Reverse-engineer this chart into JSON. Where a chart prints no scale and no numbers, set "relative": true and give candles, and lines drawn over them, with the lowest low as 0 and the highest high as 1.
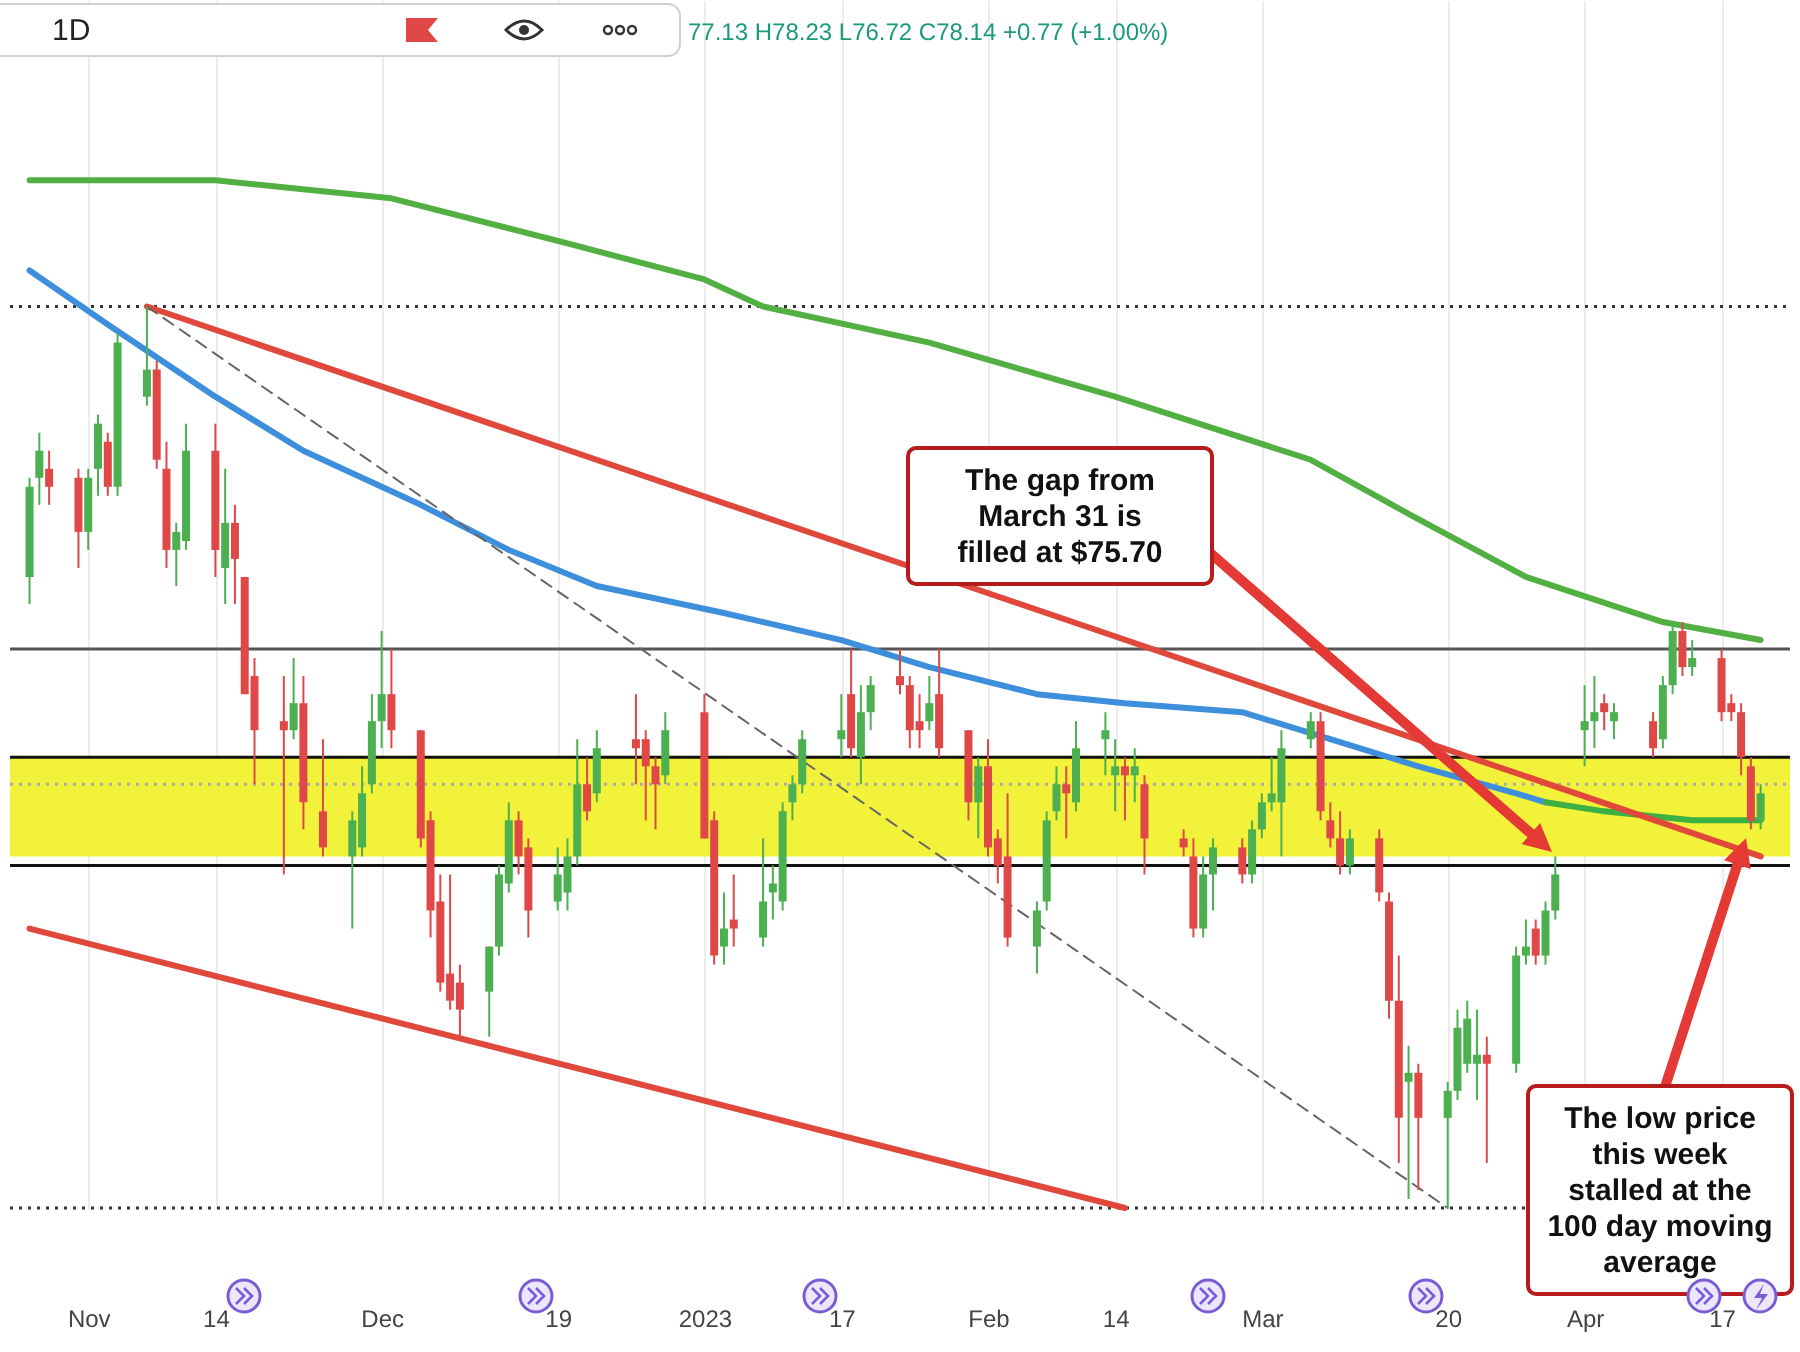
{
  "chart_data": {
    "type": "candlestick",
    "relative": true,
    "grid": "x",
    "xlim": [
      "2022-10-24",
      "2023-04-24"
    ],
    "x": [
      "2022-10-26",
      "2022-10-27",
      "2022-10-28",
      "2022-10-31",
      "2022-11-01",
      "2022-11-02",
      "2022-11-03",
      "2022-11-04",
      "2022-11-07",
      "2022-11-08",
      "2022-11-09",
      "2022-11-10",
      "2022-11-11",
      "2022-11-14",
      "2022-11-15",
      "2022-11-16",
      "2022-11-17",
      "2022-11-18",
      "2022-11-21",
      "2022-11-22",
      "2022-11-23",
      "2022-11-25",
      "2022-11-28",
      "2022-11-29",
      "2022-11-30",
      "2022-12-01",
      "2022-12-02",
      "2022-12-05",
      "2022-12-06",
      "2022-12-07",
      "2022-12-08",
      "2022-12-09",
      "2022-12-12",
      "2022-12-13",
      "2022-12-14",
      "2022-12-15",
      "2022-12-16",
      "2022-12-19",
      "2022-12-20",
      "2022-12-21",
      "2022-12-22",
      "2022-12-23",
      "2022-12-27",
      "2022-12-28",
      "2022-12-29",
      "2022-12-30",
      "2023-01-03",
      "2023-01-04",
      "2023-01-05",
      "2023-01-06",
      "2023-01-09",
      "2023-01-10",
      "2023-01-11",
      "2023-01-12",
      "2023-01-13",
      "2023-01-17",
      "2023-01-18",
      "2023-01-19",
      "2023-01-20",
      "2023-01-23",
      "2023-01-24",
      "2023-01-25",
      "2023-01-26",
      "2023-01-27",
      "2023-01-30",
      "2023-01-31",
      "2023-02-01",
      "2023-02-02",
      "2023-02-03",
      "2023-02-06",
      "2023-02-07",
      "2023-02-08",
      "2023-02-09",
      "2023-02-10",
      "2023-02-13",
      "2023-02-14",
      "2023-02-15",
      "2023-02-16",
      "2023-02-17",
      "2023-02-21",
      "2023-02-22",
      "2023-02-23",
      "2023-02-24",
      "2023-02-27",
      "2023-02-28",
      "2023-03-01",
      "2023-03-02",
      "2023-03-03",
      "2023-03-06",
      "2023-03-07",
      "2023-03-08",
      "2023-03-09",
      "2023-03-10",
      "2023-03-13",
      "2023-03-14",
      "2023-03-15",
      "2023-03-16",
      "2023-03-17",
      "2023-03-20",
      "2023-03-21",
      "2023-03-22",
      "2023-03-23",
      "2023-03-24",
      "2023-03-27",
      "2023-03-28",
      "2023-03-29",
      "2023-03-30",
      "2023-03-31",
      "2023-04-03",
      "2023-04-04",
      "2023-04-05",
      "2023-04-06",
      "2023-04-10",
      "2023-04-11",
      "2023-04-12",
      "2023-04-13",
      "2023-04-14",
      "2023-04-17",
      "2023-04-18",
      "2023-04-19",
      "2023-04-20",
      "2023-04-21"
    ],
    "ohlc": [
      [
        0.7,
        0.81,
        0.67,
        0.8
      ],
      [
        0.81,
        0.86,
        0.78,
        0.84
      ],
      [
        0.82,
        0.84,
        0.78,
        0.8
      ],
      [
        0.81,
        0.82,
        0.71,
        0.75
      ],
      [
        0.75,
        0.82,
        0.73,
        0.81
      ],
      [
        0.82,
        0.88,
        0.79,
        0.87
      ],
      [
        0.85,
        0.86,
        0.79,
        0.8
      ],
      [
        0.8,
        0.97,
        0.79,
        0.96
      ],
      [
        0.9,
        1,
        0.89,
        0.93
      ],
      [
        0.93,
        0.94,
        0.82,
        0.83
      ],
      [
        0.82,
        0.85,
        0.71,
        0.73
      ],
      [
        0.73,
        0.76,
        0.69,
        0.75
      ],
      [
        0.74,
        0.87,
        0.73,
        0.84
      ],
      [
        0.84,
        0.87,
        0.7,
        0.73
      ],
      [
        0.71,
        0.82,
        0.67,
        0.76
      ],
      [
        0.76,
        0.78,
        0.67,
        0.72
      ],
      [
        0.7,
        0.7,
        0.57,
        0.57
      ],
      [
        0.59,
        0.61,
        0.47,
        0.53
      ],
      [
        0.54,
        0.59,
        0.37,
        0.53
      ],
      [
        0.53,
        0.61,
        0.52,
        0.56
      ],
      [
        0.56,
        0.59,
        0.42,
        0.45
      ],
      [
        0.44,
        0.52,
        0.39,
        0.4
      ],
      [
        0.39,
        0.44,
        0.31,
        0.43
      ],
      [
        0.4,
        0.49,
        0.39,
        0.46
      ],
      [
        0.47,
        0.57,
        0.46,
        0.54
      ],
      [
        0.54,
        0.64,
        0.51,
        0.57
      ],
      [
        0.57,
        0.62,
        0.51,
        0.53
      ],
      [
        0.53,
        0.53,
        0.4,
        0.41
      ],
      [
        0.43,
        0.44,
        0.3,
        0.33
      ],
      [
        0.34,
        0.37,
        0.24,
        0.25
      ],
      [
        0.26,
        0.37,
        0.22,
        0.23
      ],
      [
        0.25,
        0.27,
        0.19,
        0.22
      ],
      [
        0.24,
        0.29,
        0.19,
        0.29
      ],
      [
        0.29,
        0.38,
        0.28,
        0.37
      ],
      [
        0.36,
        0.45,
        0.35,
        0.43
      ],
      [
        0.43,
        0.44,
        0.37,
        0.39
      ],
      [
        0.4,
        0.41,
        0.3,
        0.33
      ],
      [
        0.34,
        0.4,
        0.33,
        0.37
      ],
      [
        0.35,
        0.41,
        0.33,
        0.39
      ],
      [
        0.39,
        0.52,
        0.38,
        0.47
      ],
      [
        0.47,
        0.5,
        0.43,
        0.44
      ],
      [
        0.46,
        0.53,
        0.45,
        0.51
      ],
      [
        0.52,
        0.57,
        0.47,
        0.51
      ],
      [
        0.52,
        0.53,
        0.43,
        0.49
      ],
      [
        0.49,
        0.5,
        0.42,
        0.47
      ],
      [
        0.48,
        0.55,
        0.47,
        0.53
      ],
      [
        0.55,
        0.57,
        0.41,
        0.41
      ],
      [
        0.43,
        0.44,
        0.27,
        0.28
      ],
      [
        0.29,
        0.35,
        0.27,
        0.31
      ],
      [
        0.32,
        0.37,
        0.29,
        0.31
      ],
      [
        0.3,
        0.41,
        0.29,
        0.34
      ],
      [
        0.35,
        0.38,
        0.32,
        0.36
      ],
      [
        0.34,
        0.45,
        0.33,
        0.44
      ],
      [
        0.45,
        0.48,
        0.43,
        0.47
      ],
      [
        0.47,
        0.53,
        0.46,
        0.52
      ],
      [
        0.52,
        0.57,
        0.5,
        0.53
      ],
      [
        0.57,
        0.62,
        0.5,
        0.51
      ],
      [
        0.5,
        0.58,
        0.47,
        0.55
      ],
      [
        0.55,
        0.59,
        0.53,
        0.58
      ],
      [
        0.59,
        0.62,
        0.57,
        0.58
      ],
      [
        0.58,
        0.59,
        0.51,
        0.53
      ],
      [
        0.54,
        0.57,
        0.51,
        0.53
      ],
      [
        0.54,
        0.59,
        0.53,
        0.56
      ],
      [
        0.57,
        0.62,
        0.5,
        0.51
      ],
      [
        0.53,
        0.53,
        0.43,
        0.45
      ],
      [
        0.45,
        0.5,
        0.41,
        0.49
      ],
      [
        0.49,
        0.52,
        0.39,
        0.4
      ],
      [
        0.41,
        0.42,
        0.36,
        0.38
      ],
      [
        0.39,
        0.46,
        0.29,
        0.3
      ],
      [
        0.29,
        0.34,
        0.26,
        0.33
      ],
      [
        0.34,
        0.44,
        0.33,
        0.43
      ],
      [
        0.44,
        0.49,
        0.43,
        0.47
      ],
      [
        0.47,
        0.49,
        0.41,
        0.46
      ],
      [
        0.45,
        0.54,
        0.44,
        0.51
      ],
      [
        0.52,
        0.55,
        0.48,
        0.53
      ],
      [
        0.48,
        0.52,
        0.44,
        0.49
      ],
      [
        0.49,
        0.5,
        0.43,
        0.48
      ],
      [
        0.48,
        0.51,
        0.45,
        0.49
      ],
      [
        0.47,
        0.48,
        0.37,
        0.41
      ],
      [
        0.41,
        0.42,
        0.39,
        0.4
      ],
      [
        0.39,
        0.41,
        0.3,
        0.31
      ],
      [
        0.31,
        0.39,
        0.3,
        0.37
      ],
      [
        0.37,
        0.41,
        0.33,
        0.4
      ],
      [
        0.4,
        0.41,
        0.36,
        0.37
      ],
      [
        0.37,
        0.43,
        0.36,
        0.42
      ],
      [
        0.42,
        0.46,
        0.41,
        0.45
      ],
      [
        0.45,
        0.5,
        0.44,
        0.46
      ],
      [
        0.45,
        0.53,
        0.39,
        0.51
      ],
      [
        0.52,
        0.55,
        0.51,
        0.54
      ],
      [
        0.54,
        0.55,
        0.43,
        0.44
      ],
      [
        0.43,
        0.45,
        0.4,
        0.41
      ],
      [
        0.41,
        0.44,
        0.37,
        0.38
      ],
      [
        0.38,
        0.42,
        0.37,
        0.41
      ],
      [
        0.41,
        0.42,
        0.34,
        0.35
      ],
      [
        0.34,
        0.35,
        0.21,
        0.23
      ],
      [
        0.23,
        0.28,
        0.05,
        0.1
      ],
      [
        0.14,
        0.18,
        0.01,
        0.15
      ],
      [
        0.15,
        0.16,
        0.02,
        0.1
      ],
      [
        0.1,
        0.14,
        0,
        0.13
      ],
      [
        0.13,
        0.22,
        0.12,
        0.2
      ],
      [
        0.16,
        0.23,
        0.15,
        0.21
      ],
      [
        0.16,
        0.22,
        0.12,
        0.17
      ],
      [
        0.17,
        0.19,
        0.05,
        0.16
      ],
      [
        0.16,
        0.29,
        0.15,
        0.28
      ],
      [
        0.28,
        0.32,
        0.27,
        0.29
      ],
      [
        0.31,
        0.32,
        0.27,
        0.28
      ],
      [
        0.28,
        0.34,
        0.27,
        0.33
      ],
      [
        0.33,
        0.39,
        0.32,
        0.37
      ],
      [
        0.53,
        0.58,
        0.49,
        0.54
      ],
      [
        0.54,
        0.59,
        0.51,
        0.55
      ],
      [
        0.56,
        0.57,
        0.53,
        0.55
      ],
      [
        0.54,
        0.56,
        0.52,
        0.55
      ],
      [
        0.54,
        0.55,
        0.5,
        0.51
      ],
      [
        0.52,
        0.59,
        0.51,
        0.58
      ],
      [
        0.58,
        0.65,
        0.57,
        0.64
      ],
      [
        0.64,
        0.65,
        0.59,
        0.6
      ],
      [
        0.6,
        0.63,
        0.59,
        0.61
      ],
      [
        0.61,
        0.62,
        0.54,
        0.55
      ],
      [
        0.56,
        0.57,
        0.54,
        0.55
      ],
      [
        0.55,
        0.56,
        0.48,
        0.5
      ],
      [
        0.49,
        0.5,
        0.42,
        0.43
      ],
      [
        0.43,
        0.47,
        0.42,
        0.46
      ]
    ],
    "colors": [
      "#4caf50",
      "#4caf50",
      "#e04848",
      "#e04848",
      "#4caf50",
      "#4caf50",
      "#e04848",
      "#4caf50",
      "#4caf50",
      "#e04848",
      "#e04848",
      "#4caf50",
      "#4caf50",
      "#e04848",
      "#4caf50",
      "#e04848",
      "#e04848",
      "#e04848",
      "#e04848",
      "#4caf50",
      "#e04848",
      "#e04848",
      "#4caf50",
      "#4caf50",
      "#4caf50",
      "#4caf50",
      "#e04848",
      "#e04848",
      "#e04848",
      "#e04848",
      "#e04848",
      "#e04848",
      "#4caf50",
      "#4caf50",
      "#4caf50",
      "#e04848",
      "#e04848",
      "#4caf50",
      "#4caf50",
      "#4caf50",
      "#e04848",
      "#4caf50",
      "#e04848",
      "#e04848",
      "#e04848",
      "#4caf50",
      "#e04848",
      "#e04848",
      "#4caf50",
      "#e04848",
      "#4caf50",
      "#4caf50",
      "#4caf50",
      "#4caf50",
      "#4caf50",
      "#4caf50",
      "#e04848",
      "#4caf50",
      "#4caf50",
      "#e04848",
      "#e04848",
      "#e04848",
      "#4caf50",
      "#e04848",
      "#e04848",
      "#4caf50",
      "#e04848",
      "#e04848",
      "#e04848",
      "#4caf50",
      "#4caf50",
      "#4caf50",
      "#e04848",
      "#4caf50",
      "#4caf50",
      "#4caf50",
      "#e04848",
      "#4caf50",
      "#e04848",
      "#e04848",
      "#e04848",
      "#4caf50",
      "#4caf50",
      "#e04848",
      "#4caf50",
      "#4caf50",
      "#4caf50",
      "#4caf50",
      "#4caf50",
      "#e04848",
      "#e04848",
      "#e04848",
      "#4caf50",
      "#e04848",
      "#e04848",
      "#e04848",
      "#4caf50",
      "#e04848",
      "#4caf50",
      "#4caf50",
      "#4caf50",
      "#4caf50",
      "#e04848",
      "#4caf50",
      "#4caf50",
      "#e04848",
      "#4caf50",
      "#4caf50",
      "#4caf50",
      "#4caf50",
      "#e04848",
      "#4caf50",
      "#e04848",
      "#4caf50",
      "#4caf50",
      "#e04848",
      "#4caf50",
      "#e04848",
      "#e04848",
      "#e04848",
      "#e04848",
      "#4caf50"
    ],
    "xticks": [
      {
        "value": "2022-11-01",
        "label": "Nov"
      },
      {
        "value": "2022-11-14",
        "label": "14"
      },
      {
        "value": "2022-12-01",
        "label": "Dec"
      },
      {
        "value": "2022-12-19",
        "label": "19"
      },
      {
        "value": "2023-01-03",
        "label": "2023"
      },
      {
        "value": "2023-01-17",
        "label": "17"
      },
      {
        "value": "2023-02-01",
        "label": "Feb"
      },
      {
        "value": "2023-02-14",
        "label": "14"
      },
      {
        "value": "2023-03-01",
        "label": "Mar"
      },
      {
        "value": "2023-03-20",
        "label": "20"
      },
      {
        "value": "2023-04-03",
        "label": "Apr"
      },
      {
        "value": "2023-04-17",
        "label": "17"
      }
    ],
    "series": [
      {
        "type": "line",
        "color": "#52b043",
        "x": [
          "2022-10-26",
          "2022-11-14",
          "2022-12-02",
          "2022-12-20",
          "2023-01-03",
          "2023-01-09",
          "2023-01-26",
          "2023-02-14",
          "2023-03-06",
          "2023-03-16",
          "2023-03-28",
          "2023-04-11",
          "2023-04-21"
        ],
        "values": [
          1.14,
          1.14,
          1.12,
          1.07,
          1.03,
          1.0,
          0.96,
          0.9,
          0.83,
          0.77,
          0.7,
          0.65,
          0.63
        ]
      },
      {
        "type": "line",
        "color": "#3d8fdc",
        "x": [
          "2022-10-26",
          "2022-11-03",
          "2022-11-14",
          "2022-11-23",
          "2022-12-05",
          "2022-12-14",
          "2022-12-23",
          "2023-01-05",
          "2023-01-17",
          "2023-01-26",
          "2023-02-06",
          "2023-02-15",
          "2023-02-27",
          "2023-03-08",
          "2023-03-17",
          "2023-03-27",
          "2023-03-30"
        ],
        "values": [
          1.04,
          0.98,
          0.9,
          0.84,
          0.78,
          0.73,
          0.69,
          0.66,
          0.63,
          0.6,
          0.57,
          0.56,
          0.55,
          0.52,
          0.49,
          0.46,
          0.45
        ]
      },
      {
        "type": "line",
        "color": "#3cb043",
        "x": [
          "2023-03-30",
          "2023-04-05",
          "2023-04-14",
          "2023-04-21"
        ],
        "values": [
          0.45,
          0.44,
          0.43,
          0.43
        ]
      },
      {
        "type": "line",
        "color": "#e0483c",
        "x": [
          "2022-11-07",
          "2023-04-21"
        ],
        "values": [
          1,
          0.39
        ]
      },
      {
        "type": "line",
        "color": "#e0483c",
        "x": [
          "2022-10-26",
          "2023-02-15"
        ],
        "values": [
          0.31,
          0
        ]
      },
      {
        "type": "line",
        "color": "#666666",
        "line_style": "dashed",
        "x": [
          "2022-11-07",
          "2023-03-20"
        ],
        "values": [
          1,
          0
        ]
      }
    ],
    "ref_lines": [
      {
        "axis": "y",
        "value": 1,
        "color": "#333333",
        "line_style": "dotted"
      },
      {
        "axis": "y",
        "value": 0.62,
        "color": "#555555",
        "line_style": "solid"
      },
      {
        "axis": "y",
        "value": 0.5,
        "color": "#111111",
        "line_style": "solid"
      },
      {
        "axis": "y",
        "value": 0.47,
        "color": "#aaaaaa",
        "line_style": "dotted"
      },
      {
        "axis": "y",
        "value": 0.38,
        "color": "#111111",
        "line_style": "solid"
      },
      {
        "axis": "y",
        "value": 0,
        "color": "#333333",
        "line_style": "dotted"
      }
    ],
    "bands": [
      {
        "axis": "y",
        "from": 0.39,
        "to": 0.5,
        "color": "#f2f23a"
      }
    ],
    "annotations": [
      "1D",
      "77.13 H78.23 L76.72 C78.14 +0.77 (+1.00%)",
      "The gap from March 31 is filled at $75.70",
      "The low price this week stalled at the 100 day moving average"
    ]
  }
}
